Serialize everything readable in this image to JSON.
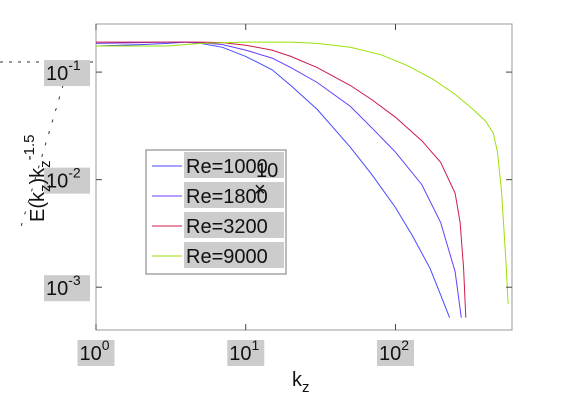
{
  "chart_data": {
    "type": "line",
    "xlabel": "k",
    "xlabel_sub": "z",
    "ylabel_parts": [
      {
        "t": "E(k",
        "sub": false
      },
      {
        "t": "z",
        "sub": true
      },
      {
        "t": ")k",
        "sub": false
      },
      {
        "t": "z",
        "sub": true
      },
      {
        "t": "-1.5",
        "sup": true
      }
    ],
    "x_scale": "log",
    "y_scale": "log",
    "xlim": [
      1,
      600
    ],
    "ylim": [
      0.0004,
      0.28
    ],
    "x_ticks": [
      {
        "value": 1,
        "base": "10",
        "exp": "0"
      },
      {
        "value": 10,
        "base": "10",
        "exp": "1"
      },
      {
        "value": 100,
        "base": "10",
        "exp": "2"
      }
    ],
    "y_ticks": [
      {
        "value": 0.001,
        "base": "10",
        "exp": "-3"
      },
      {
        "value": 0.01,
        "base": "10",
        "exp": "-2"
      },
      {
        "value": 0.1,
        "base": "10",
        "exp": "-1"
      }
    ],
    "legend_position": "center-left",
    "legend_overlay_text": "10",
    "legend_overlay_mark": "×",
    "grid": false,
    "series": [
      {
        "name": "Re=1000",
        "color": "#4a4aff",
        "points": [
          [
            1,
            0.175
          ],
          [
            2,
            0.18
          ],
          [
            3,
            0.185
          ],
          [
            4,
            0.19
          ],
          [
            5,
            0.185
          ],
          [
            7,
            0.17
          ],
          [
            10,
            0.14
          ],
          [
            15,
            0.105
          ],
          [
            20,
            0.075
          ],
          [
            30,
            0.045
          ],
          [
            50,
            0.02
          ],
          [
            70,
            0.011
          ],
          [
            100,
            0.0055
          ],
          [
            130,
            0.003
          ],
          [
            170,
            0.0015
          ],
          [
            200,
            0.00085
          ],
          [
            230,
            0.00052
          ]
        ]
      },
      {
        "name": "Re=1800",
        "color": "#6a3cff",
        "points": [
          [
            1,
            0.185
          ],
          [
            2,
            0.188
          ],
          [
            3,
            0.19
          ],
          [
            4,
            0.19
          ],
          [
            5,
            0.188
          ],
          [
            7,
            0.18
          ],
          [
            10,
            0.16
          ],
          [
            15,
            0.135
          ],
          [
            20,
            0.11
          ],
          [
            30,
            0.08
          ],
          [
            50,
            0.048
          ],
          [
            70,
            0.03
          ],
          [
            100,
            0.018
          ],
          [
            150,
            0.009
          ],
          [
            200,
            0.004
          ],
          [
            250,
            0.0014
          ],
          [
            275,
            0.00052
          ]
        ]
      },
      {
        "name": "Re=3200",
        "color": "#cc1a4a",
        "points": [
          [
            1,
            0.19
          ],
          [
            2,
            0.19
          ],
          [
            3,
            0.19
          ],
          [
            4,
            0.19
          ],
          [
            5,
            0.19
          ],
          [
            7,
            0.188
          ],
          [
            10,
            0.178
          ],
          [
            15,
            0.16
          ],
          [
            20,
            0.14
          ],
          [
            30,
            0.11
          ],
          [
            50,
            0.075
          ],
          [
            70,
            0.055
          ],
          [
            100,
            0.038
          ],
          [
            150,
            0.023
          ],
          [
            200,
            0.0145
          ],
          [
            250,
            0.0075
          ],
          [
            270,
            0.004
          ],
          [
            285,
            0.0015
          ],
          [
            295,
            0.00052
          ]
        ]
      },
      {
        "name": "Re=9000",
        "color": "#9be00a",
        "points": [
          [
            1,
            0.175
          ],
          [
            3,
            0.175
          ],
          [
            5,
            0.185
          ],
          [
            10,
            0.19
          ],
          [
            20,
            0.19
          ],
          [
            30,
            0.185
          ],
          [
            50,
            0.17
          ],
          [
            80,
            0.145
          ],
          [
            120,
            0.115
          ],
          [
            180,
            0.085
          ],
          [
            250,
            0.062
          ],
          [
            330,
            0.045
          ],
          [
            400,
            0.035
          ],
          [
            450,
            0.027
          ],
          [
            480,
            0.018
          ],
          [
            510,
            0.008
          ],
          [
            530,
            0.0035
          ],
          [
            550,
            0.0015
          ],
          [
            565,
            0.0007
          ]
        ]
      }
    ]
  }
}
